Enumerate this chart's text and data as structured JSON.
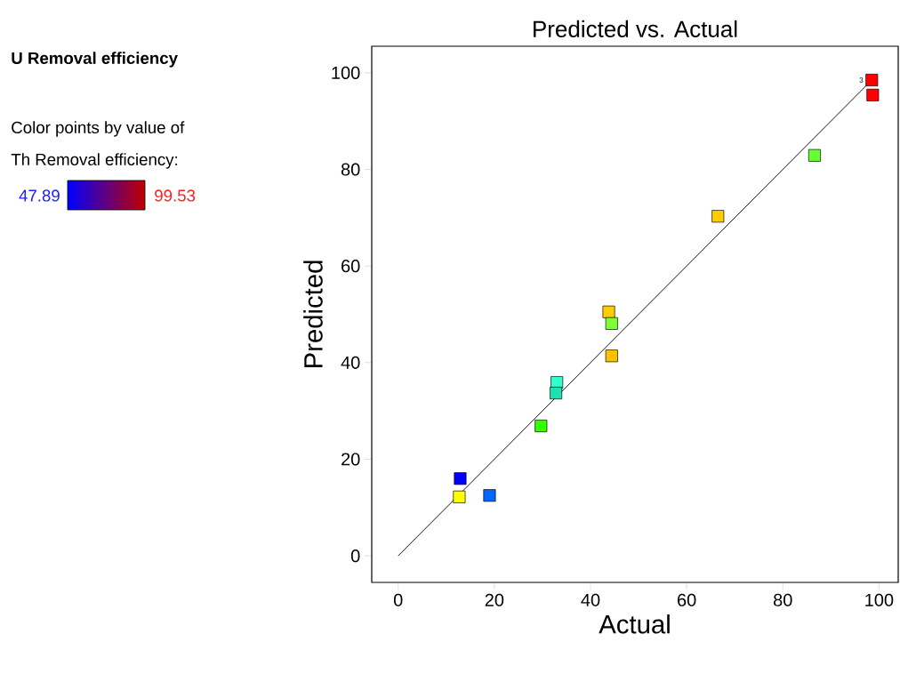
{
  "chart_data": {
    "type": "scatter",
    "title": "Predicted vs. Actual",
    "subtitle": "U Removal efficiency",
    "xlabel": "Actual",
    "ylabel": "Predicted",
    "annotations": [
      "Color points by value of",
      "Th Removal efficiency:",
      "47.89",
      "99.53",
      {
        "text": "3",
        "x": 98.5,
        "y": 98.5
      }
    ],
    "series": [
      {
        "type": "scatter",
        "marker": "square",
        "x": [
          98.5,
          98.7,
          86.6,
          66.5,
          43.8,
          44.4,
          44.4,
          33.0,
          32.8,
          29.7,
          12.9,
          12.7,
          19.0
        ],
        "values": [
          98.5,
          95.4,
          82.9,
          70.3,
          50.5,
          48.1,
          41.4,
          35.9,
          33.7,
          26.9,
          16.0,
          12.2,
          12.5
        ],
        "colors": [
          "#ff0000",
          "#ff0000",
          "#66ff33",
          "#ffcc00",
          "#ffcc00",
          "#80ff33",
          "#ffc000",
          "#33ffcc",
          "#20e0b0",
          "#33ff00",
          "#0000ff",
          "#ffff00",
          "#0066ff"
        ]
      },
      {
        "type": "line",
        "color": "#000000",
        "x": [
          0,
          99.5
        ],
        "values": [
          0,
          99.5
        ]
      }
    ],
    "xlim": [
      -5.5,
      104
    ],
    "ylim": [
      -5.5,
      105.5
    ],
    "xticks": [
      0,
      20,
      40,
      60,
      80,
      100
    ],
    "yticks": [
      0,
      20,
      40,
      60,
      80,
      100
    ]
  }
}
